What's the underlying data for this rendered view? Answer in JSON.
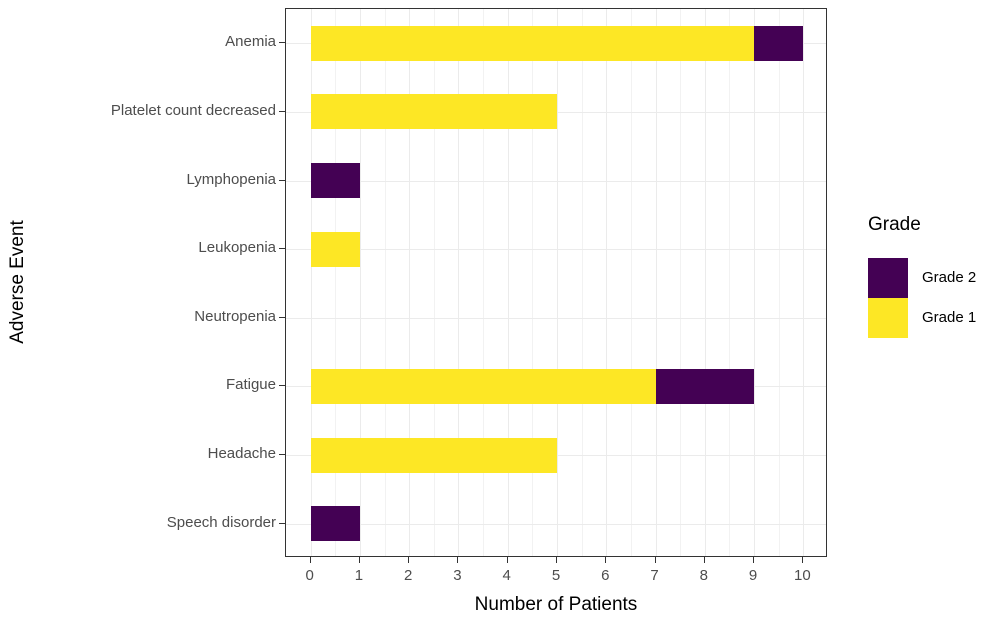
{
  "chart_data": {
    "type": "bar",
    "orientation": "horizontal",
    "stacked": true,
    "title": "",
    "xlabel": "Number of Patients",
    "ylabel": "Adverse Event",
    "categories": [
      "Anemia",
      "Platelet count decreased",
      "Lymphopenia",
      "Leukopenia",
      "Neutropenia",
      "Fatigue",
      "Headache",
      "Speech disorder"
    ],
    "series": [
      {
        "name": "Grade 1",
        "color": "#FDE725",
        "values": [
          9,
          5,
          0,
          1,
          0,
          7,
          5,
          0
        ]
      },
      {
        "name": "Grade 2",
        "color": "#440154",
        "values": [
          1,
          0,
          1,
          0,
          0,
          2,
          0,
          1
        ]
      }
    ],
    "totals": [
      10,
      5,
      1,
      1,
      0,
      9,
      5,
      1
    ],
    "xlim": [
      0,
      10
    ],
    "x_ticks": [
      0,
      1,
      2,
      3,
      4,
      5,
      6,
      7,
      8,
      9,
      10
    ],
    "grid": {
      "major_x": true,
      "minor_x": true,
      "major_y": true,
      "color": "#EBEBEB"
    },
    "panel_border_color": "#333333",
    "axis_text_color": "#4D4D4D",
    "legend": {
      "title": "Grade",
      "position": "right",
      "entries": [
        {
          "label": "Grade 2",
          "color": "#440154"
        },
        {
          "label": "Grade 1",
          "color": "#FDE725"
        }
      ]
    }
  }
}
